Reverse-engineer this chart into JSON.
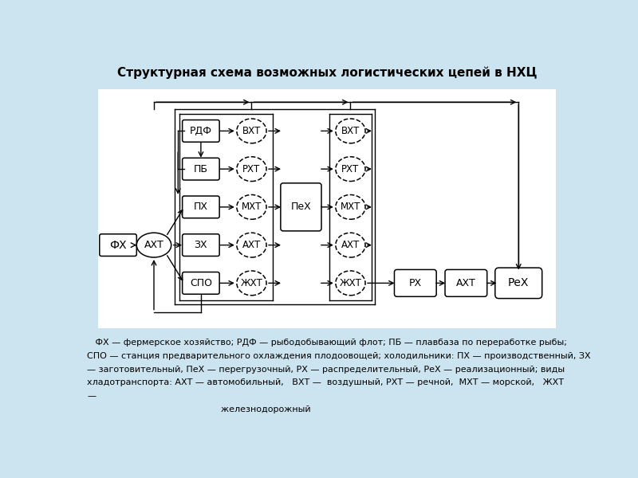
{
  "title": "Структурная схема возможных логистических цепей в НХЦ",
  "bg_color": "#cce4f0",
  "diagram_bg": "#ffffff",
  "legend_bg": "#cce4f0",
  "legend_text": [
    "   ФХ — фермерское хозяйство; РДФ — рыбодобывающий флот; ПБ — плавбаза по переработке рыбы;",
    "СПО — станция предварительного охлаждения плодоовощей; холодильники: ПХ — производственный, ЗХ",
    "— заготовительный, ПеХ — перегрузочный, РХ — распределительный, РеХ — реализационный; виды",
    "хладотранспорта: АХТ — автомобильный,   ВХТ —  воздушный, РХТ — речной,  МХТ — морской,   ЖХТ",
    "—"
  ],
  "legend_last": "                                                железнодорожный"
}
